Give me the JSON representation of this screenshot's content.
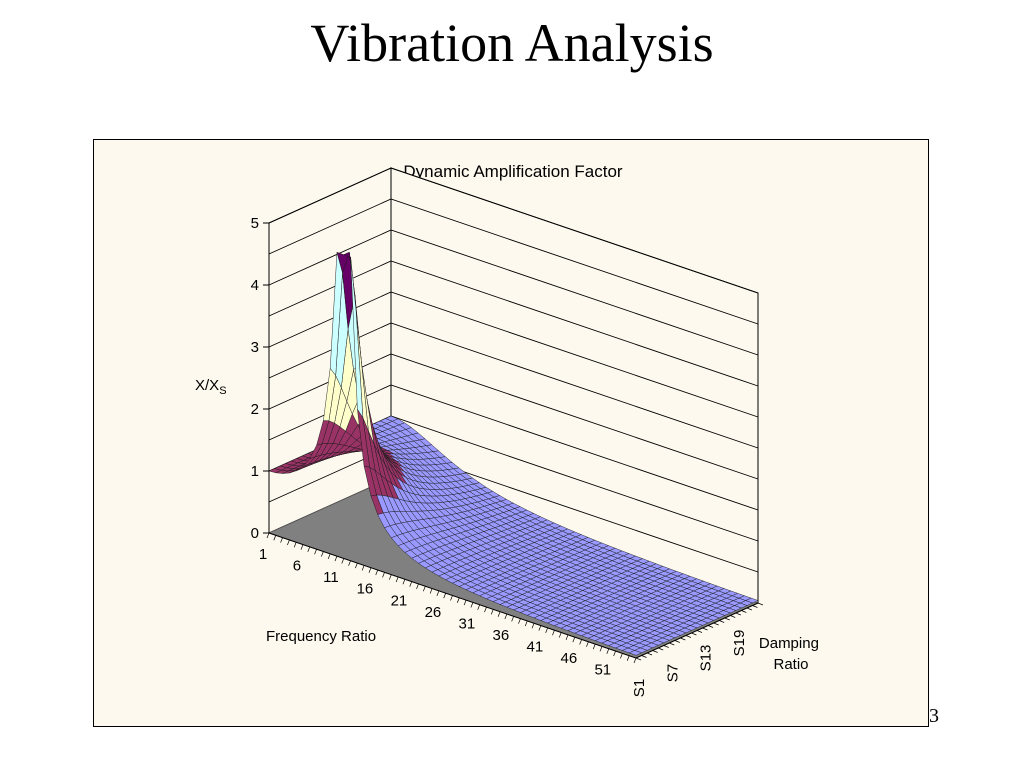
{
  "slide": {
    "title": "Vibration Analysis",
    "page_number": "3"
  },
  "chart_data": {
    "type": "surface",
    "title": "Dynamic Amplification Factor",
    "xlabel": "Frequency Ratio",
    "ylabel": "X/X",
    "ylabel_subscript": "S",
    "zlabel_lines": [
      "Damping",
      "Ratio"
    ],
    "z_axis_ticks": [
      0,
      1,
      2,
      3,
      4,
      5
    ],
    "zlim": [
      0,
      5
    ],
    "x_tick_labels": [
      "1",
      "6",
      "11",
      "16",
      "21",
      "26",
      "31",
      "36",
      "41",
      "46",
      "51"
    ],
    "x_count": 55,
    "depth_tick_labels": [
      "S1",
      "S7",
      "S13",
      "S19"
    ],
    "depth_count": 23,
    "color_bands": [
      {
        "range": [
          0,
          1
        ],
        "color": "#9999ff"
      },
      {
        "range": [
          1,
          2
        ],
        "color": "#993366"
      },
      {
        "range": [
          2,
          3
        ],
        "color": "#ffffcc"
      },
      {
        "range": [
          3,
          4
        ],
        "color": "#ccffff"
      },
      {
        "range": [
          4,
          5
        ],
        "color": "#660066"
      }
    ],
    "floor_color": "#808080",
    "resonance_index": 11,
    "peak_value": 4.9,
    "grid": true,
    "legend": "none"
  }
}
